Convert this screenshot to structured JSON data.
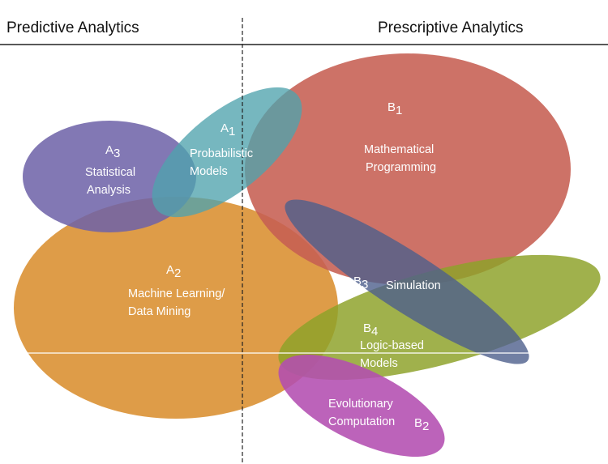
{
  "headers": {
    "left": "Predictive Analytics",
    "right": "Prescriptive Analytics"
  },
  "colors": {
    "a1": "#4fa3ad",
    "a2": "#d98c2a",
    "a3": "#6e62a8",
    "b1": "#c65e52",
    "b3": "#4e5f8c",
    "b4": "#8ea22a",
    "b2": "#b34db0",
    "line": "#222222"
  },
  "regions": {
    "a1": {
      "letter": "A",
      "index": "1",
      "lines": [
        "Probabilistic",
        "Models"
      ]
    },
    "a2": {
      "letter": "A",
      "index": "2",
      "lines": [
        "Machine Learning/",
        "Data Mining"
      ]
    },
    "a3": {
      "letter": "A",
      "index": "3",
      "lines": [
        "Statistical",
        "Analysis"
      ]
    },
    "b1": {
      "letter": "B",
      "index": "1",
      "lines": [
        "Mathematical",
        "Programming"
      ]
    },
    "b3": {
      "letter": "B",
      "index": "3",
      "lines": [
        "Simulation"
      ]
    },
    "b4": {
      "letter": "B",
      "index": "4",
      "lines": [
        "Logic-based",
        "Models"
      ]
    },
    "b2": {
      "letter": "B",
      "index": "2",
      "lines": [
        "Evolutionary",
        "Computation"
      ]
    }
  }
}
